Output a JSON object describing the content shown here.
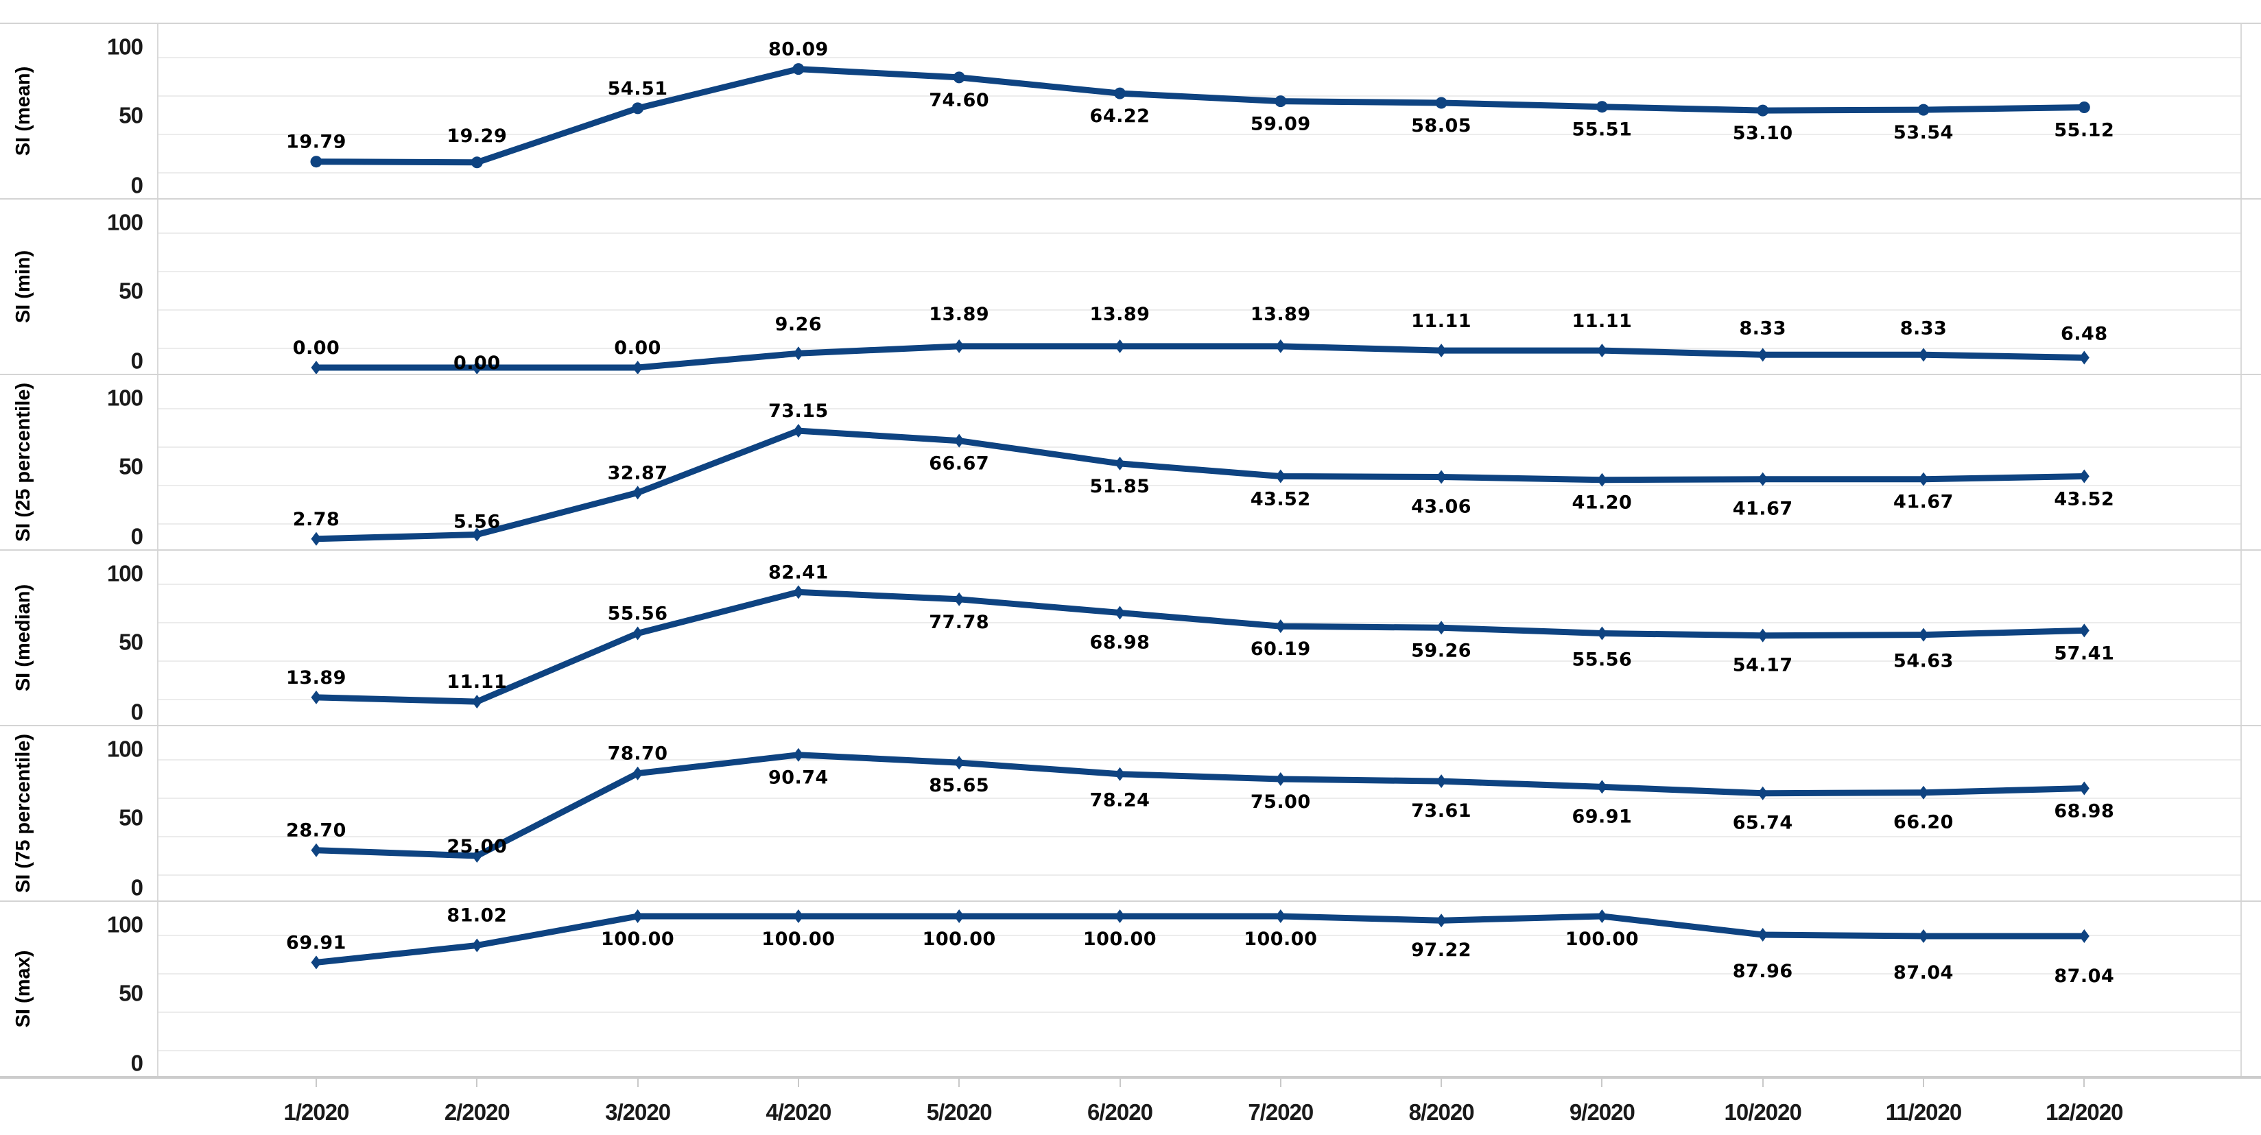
{
  "chart_data": {
    "type": "line",
    "title": "",
    "xlabel": "",
    "categories": [
      "1/2020",
      "2/2020",
      "3/2020",
      "4/2020",
      "5/2020",
      "6/2020",
      "7/2020",
      "8/2020",
      "9/2020",
      "10/2020",
      "11/2020",
      "12/2020"
    ],
    "ylim": [
      0,
      100
    ],
    "yticks": [
      "100",
      "50",
      "0"
    ],
    "grid": "horizontal, light minor gridlines",
    "legend": "none",
    "line_color": "#0e4381",
    "label_color": "#000000",
    "panels": [
      {
        "ylabel": "SI (mean)",
        "marker": "circle",
        "values": [
          19.79,
          19.29,
          54.51,
          80.09,
          74.6,
          64.22,
          59.09,
          58.05,
          55.51,
          53.1,
          53.54,
          55.12
        ],
        "labels": [
          "19.79",
          "19.29",
          "54.51",
          "80.09",
          "74.60",
          "64.22",
          "59.09",
          "58.05",
          "55.51",
          "53.10",
          "53.54",
          "55.12"
        ],
        "label_side": [
          "above",
          "above",
          "above",
          "above",
          "below",
          "below",
          "below",
          "below",
          "below",
          "below",
          "below",
          "below"
        ],
        "label_dy": [
          0,
          -10,
          0,
          0,
          0,
          0,
          0,
          0,
          0,
          0,
          0,
          0
        ]
      },
      {
        "ylabel": "SI (min)",
        "marker": "diamond",
        "values": [
          0.0,
          0.0,
          0.0,
          9.26,
          13.89,
          13.89,
          13.89,
          11.11,
          11.11,
          8.33,
          8.33,
          6.48
        ],
        "labels": [
          "0.00",
          "0.00",
          "0.00",
          "9.26",
          "13.89",
          "13.89",
          "13.89",
          "11.11",
          "11.11",
          "8.33",
          "8.33",
          "6.48"
        ],
        "label_side": [
          "above",
          "above",
          "above",
          "above",
          "above",
          "above",
          "above",
          "above",
          "above",
          "above",
          "above",
          "above"
        ],
        "label_dy": [
          0,
          22,
          0,
          -14,
          -18,
          -18,
          -18,
          -14,
          -14,
          -10,
          -10,
          -6
        ]
      },
      {
        "ylabel": "SI (25 percentile)",
        "marker": "diamond",
        "values": [
          2.78,
          5.56,
          32.87,
          73.15,
          66.67,
          51.85,
          43.52,
          43.06,
          41.2,
          41.67,
          41.67,
          43.52
        ],
        "labels": [
          "2.78",
          "5.56",
          "32.87",
          "73.15",
          "66.67",
          "51.85",
          "43.52",
          "43.06",
          "41.20",
          "41.67",
          "41.67",
          "43.52"
        ],
        "label_side": [
          "above",
          "above",
          "above",
          "above",
          "below",
          "below",
          "below",
          "below",
          "below",
          "below",
          "below",
          "below"
        ],
        "label_dy": [
          0,
          10,
          0,
          0,
          0,
          0,
          0,
          10,
          0,
          10,
          0,
          0
        ]
      },
      {
        "ylabel": "SI (median)",
        "marker": "diamond",
        "values": [
          13.89,
          11.11,
          55.56,
          82.41,
          77.78,
          68.98,
          60.19,
          59.26,
          55.56,
          54.17,
          54.63,
          57.41
        ],
        "labels": [
          "13.89",
          "11.11",
          "55.56",
          "82.41",
          "77.78",
          "68.98",
          "60.19",
          "59.26",
          "55.56",
          "54.17",
          "54.63",
          "57.41"
        ],
        "label_side": [
          "above",
          "above",
          "above",
          "above",
          "below",
          "below",
          "below",
          "below",
          "below",
          "below",
          "below",
          "below"
        ],
        "label_dy": [
          0,
          0,
          0,
          0,
          0,
          10,
          0,
          0,
          5,
          10,
          5,
          0
        ]
      },
      {
        "ylabel": "SI (75 percentile)",
        "marker": "diamond",
        "values": [
          28.7,
          25.0,
          78.7,
          90.74,
          85.65,
          78.24,
          75.0,
          73.61,
          69.91,
          65.74,
          66.2,
          68.98
        ],
        "labels": [
          "28.70",
          "25.00",
          "78.70",
          "90.74",
          "85.65",
          "78.24",
          "75.00",
          "73.61",
          "69.91",
          "65.74",
          "66.20",
          "68.98"
        ],
        "label_side": [
          "above",
          "above",
          "above",
          "below",
          "below",
          "below",
          "below",
          "below",
          "below",
          "below",
          "below",
          "below"
        ],
        "label_dy": [
          0,
          15,
          0,
          0,
          0,
          5,
          0,
          10,
          10,
          10,
          10,
          0
        ]
      },
      {
        "ylabel": "SI (max)",
        "marker": "diamond",
        "values": [
          69.91,
          81.02,
          100.0,
          100.0,
          100.0,
          100.0,
          100.0,
          97.22,
          100.0,
          87.96,
          87.04,
          87.04
        ],
        "labels": [
          "69.91",
          "81.02",
          "100.00",
          "100.00",
          "100.00",
          "100.00",
          "100.00",
          "97.22",
          "100.00",
          "87.96",
          "87.04",
          "87.04"
        ],
        "label_side": [
          "above",
          "above",
          "below",
          "below",
          "below",
          "below",
          "below",
          "below",
          "below",
          "below",
          "below",
          "below"
        ],
        "label_dy": [
          0,
          -15,
          0,
          0,
          0,
          0,
          0,
          10,
          0,
          20,
          20,
          25
        ]
      }
    ]
  }
}
